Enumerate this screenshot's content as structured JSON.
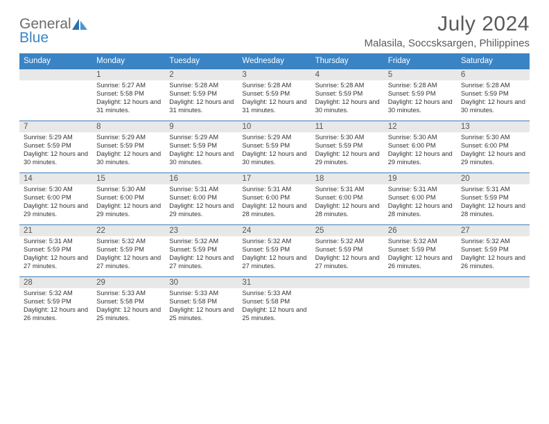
{
  "brand": {
    "general": "General",
    "blue": "Blue"
  },
  "title": {
    "month": "July 2024",
    "location": "Malasila, Soccsksargen, Philippines"
  },
  "colors": {
    "header_bg": "#3a84c5",
    "band_bg": "#e8e8e8",
    "band_border": "#3a7db8",
    "text": "#333333"
  },
  "daysOfWeek": [
    "Sunday",
    "Monday",
    "Tuesday",
    "Wednesday",
    "Thursday",
    "Friday",
    "Saturday"
  ],
  "weeks": [
    [
      {
        "num": "",
        "sunrise": "",
        "sunset": "",
        "daylight": ""
      },
      {
        "num": "1",
        "sunrise": "Sunrise: 5:27 AM",
        "sunset": "Sunset: 5:58 PM",
        "daylight": "Daylight: 12 hours and 31 minutes."
      },
      {
        "num": "2",
        "sunrise": "Sunrise: 5:28 AM",
        "sunset": "Sunset: 5:59 PM",
        "daylight": "Daylight: 12 hours and 31 minutes."
      },
      {
        "num": "3",
        "sunrise": "Sunrise: 5:28 AM",
        "sunset": "Sunset: 5:59 PM",
        "daylight": "Daylight: 12 hours and 31 minutes."
      },
      {
        "num": "4",
        "sunrise": "Sunrise: 5:28 AM",
        "sunset": "Sunset: 5:59 PM",
        "daylight": "Daylight: 12 hours and 30 minutes."
      },
      {
        "num": "5",
        "sunrise": "Sunrise: 5:28 AM",
        "sunset": "Sunset: 5:59 PM",
        "daylight": "Daylight: 12 hours and 30 minutes."
      },
      {
        "num": "6",
        "sunrise": "Sunrise: 5:28 AM",
        "sunset": "Sunset: 5:59 PM",
        "daylight": "Daylight: 12 hours and 30 minutes."
      }
    ],
    [
      {
        "num": "7",
        "sunrise": "Sunrise: 5:29 AM",
        "sunset": "Sunset: 5:59 PM",
        "daylight": "Daylight: 12 hours and 30 minutes."
      },
      {
        "num": "8",
        "sunrise": "Sunrise: 5:29 AM",
        "sunset": "Sunset: 5:59 PM",
        "daylight": "Daylight: 12 hours and 30 minutes."
      },
      {
        "num": "9",
        "sunrise": "Sunrise: 5:29 AM",
        "sunset": "Sunset: 5:59 PM",
        "daylight": "Daylight: 12 hours and 30 minutes."
      },
      {
        "num": "10",
        "sunrise": "Sunrise: 5:29 AM",
        "sunset": "Sunset: 5:59 PM",
        "daylight": "Daylight: 12 hours and 30 minutes."
      },
      {
        "num": "11",
        "sunrise": "Sunrise: 5:30 AM",
        "sunset": "Sunset: 5:59 PM",
        "daylight": "Daylight: 12 hours and 29 minutes."
      },
      {
        "num": "12",
        "sunrise": "Sunrise: 5:30 AM",
        "sunset": "Sunset: 6:00 PM",
        "daylight": "Daylight: 12 hours and 29 minutes."
      },
      {
        "num": "13",
        "sunrise": "Sunrise: 5:30 AM",
        "sunset": "Sunset: 6:00 PM",
        "daylight": "Daylight: 12 hours and 29 minutes."
      }
    ],
    [
      {
        "num": "14",
        "sunrise": "Sunrise: 5:30 AM",
        "sunset": "Sunset: 6:00 PM",
        "daylight": "Daylight: 12 hours and 29 minutes."
      },
      {
        "num": "15",
        "sunrise": "Sunrise: 5:30 AM",
        "sunset": "Sunset: 6:00 PM",
        "daylight": "Daylight: 12 hours and 29 minutes."
      },
      {
        "num": "16",
        "sunrise": "Sunrise: 5:31 AM",
        "sunset": "Sunset: 6:00 PM",
        "daylight": "Daylight: 12 hours and 29 minutes."
      },
      {
        "num": "17",
        "sunrise": "Sunrise: 5:31 AM",
        "sunset": "Sunset: 6:00 PM",
        "daylight": "Daylight: 12 hours and 28 minutes."
      },
      {
        "num": "18",
        "sunrise": "Sunrise: 5:31 AM",
        "sunset": "Sunset: 6:00 PM",
        "daylight": "Daylight: 12 hours and 28 minutes."
      },
      {
        "num": "19",
        "sunrise": "Sunrise: 5:31 AM",
        "sunset": "Sunset: 6:00 PM",
        "daylight": "Daylight: 12 hours and 28 minutes."
      },
      {
        "num": "20",
        "sunrise": "Sunrise: 5:31 AM",
        "sunset": "Sunset: 5:59 PM",
        "daylight": "Daylight: 12 hours and 28 minutes."
      }
    ],
    [
      {
        "num": "21",
        "sunrise": "Sunrise: 5:31 AM",
        "sunset": "Sunset: 5:59 PM",
        "daylight": "Daylight: 12 hours and 27 minutes."
      },
      {
        "num": "22",
        "sunrise": "Sunrise: 5:32 AM",
        "sunset": "Sunset: 5:59 PM",
        "daylight": "Daylight: 12 hours and 27 minutes."
      },
      {
        "num": "23",
        "sunrise": "Sunrise: 5:32 AM",
        "sunset": "Sunset: 5:59 PM",
        "daylight": "Daylight: 12 hours and 27 minutes."
      },
      {
        "num": "24",
        "sunrise": "Sunrise: 5:32 AM",
        "sunset": "Sunset: 5:59 PM",
        "daylight": "Daylight: 12 hours and 27 minutes."
      },
      {
        "num": "25",
        "sunrise": "Sunrise: 5:32 AM",
        "sunset": "Sunset: 5:59 PM",
        "daylight": "Daylight: 12 hours and 27 minutes."
      },
      {
        "num": "26",
        "sunrise": "Sunrise: 5:32 AM",
        "sunset": "Sunset: 5:59 PM",
        "daylight": "Daylight: 12 hours and 26 minutes."
      },
      {
        "num": "27",
        "sunrise": "Sunrise: 5:32 AM",
        "sunset": "Sunset: 5:59 PM",
        "daylight": "Daylight: 12 hours and 26 minutes."
      }
    ],
    [
      {
        "num": "28",
        "sunrise": "Sunrise: 5:32 AM",
        "sunset": "Sunset: 5:59 PM",
        "daylight": "Daylight: 12 hours and 26 minutes."
      },
      {
        "num": "29",
        "sunrise": "Sunrise: 5:33 AM",
        "sunset": "Sunset: 5:58 PM",
        "daylight": "Daylight: 12 hours and 25 minutes."
      },
      {
        "num": "30",
        "sunrise": "Sunrise: 5:33 AM",
        "sunset": "Sunset: 5:58 PM",
        "daylight": "Daylight: 12 hours and 25 minutes."
      },
      {
        "num": "31",
        "sunrise": "Sunrise: 5:33 AM",
        "sunset": "Sunset: 5:58 PM",
        "daylight": "Daylight: 12 hours and 25 minutes."
      },
      {
        "num": "",
        "sunrise": "",
        "sunset": "",
        "daylight": ""
      },
      {
        "num": "",
        "sunrise": "",
        "sunset": "",
        "daylight": ""
      },
      {
        "num": "",
        "sunrise": "",
        "sunset": "",
        "daylight": ""
      }
    ]
  ]
}
